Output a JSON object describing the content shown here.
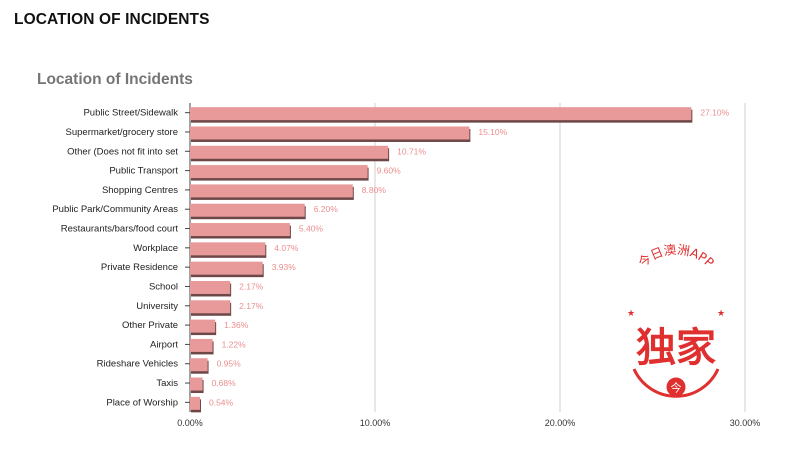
{
  "page": {
    "heading": "LOCATION OF INCIDENTS"
  },
  "chart_data": {
    "type": "bar",
    "orientation": "horizontal",
    "title": "Location of Incidents",
    "xlabel": "",
    "ylabel": "",
    "xlim": [
      0,
      30
    ],
    "x_ticks": [
      "0.00%",
      "10.00%",
      "20.00%",
      "30.00%"
    ],
    "grid": true,
    "bar_color": "#e89a9a",
    "bar_shadow_color": "#6e4848",
    "value_label_color": "#ec8e8e",
    "categories": [
      "Public Street/Sidewalk",
      "Supermarket/grocery store",
      "Other (Does not fit into set",
      "Public Transport",
      "Shopping Centres",
      "Public Park/Community Areas",
      "Restaurants/bars/food court",
      "Workplace",
      "Private Residence",
      "School",
      "University",
      "Other Private",
      "Airport",
      "Rideshare Vehicles",
      "Taxis",
      "Place of Worship"
    ],
    "values": [
      27.1,
      15.1,
      10.71,
      9.6,
      8.8,
      6.2,
      5.4,
      4.07,
      3.93,
      2.17,
      2.17,
      1.36,
      1.22,
      0.95,
      0.68,
      0.54
    ],
    "value_labels": [
      "27.10%",
      "15.10%",
      "10.71%",
      "9.60%",
      "8.80%",
      "6.20%",
      "5.40%",
      "4.07%",
      "3.93%",
      "2.17%",
      "2.17%",
      "1.36%",
      "1.22%",
      "0.95%",
      "0.68%",
      "0.54%"
    ]
  },
  "watermark": {
    "arc_text": "今日澳洲APP",
    "main_text": "独家",
    "badge_glyph": "今",
    "color": "#e02f2f"
  }
}
